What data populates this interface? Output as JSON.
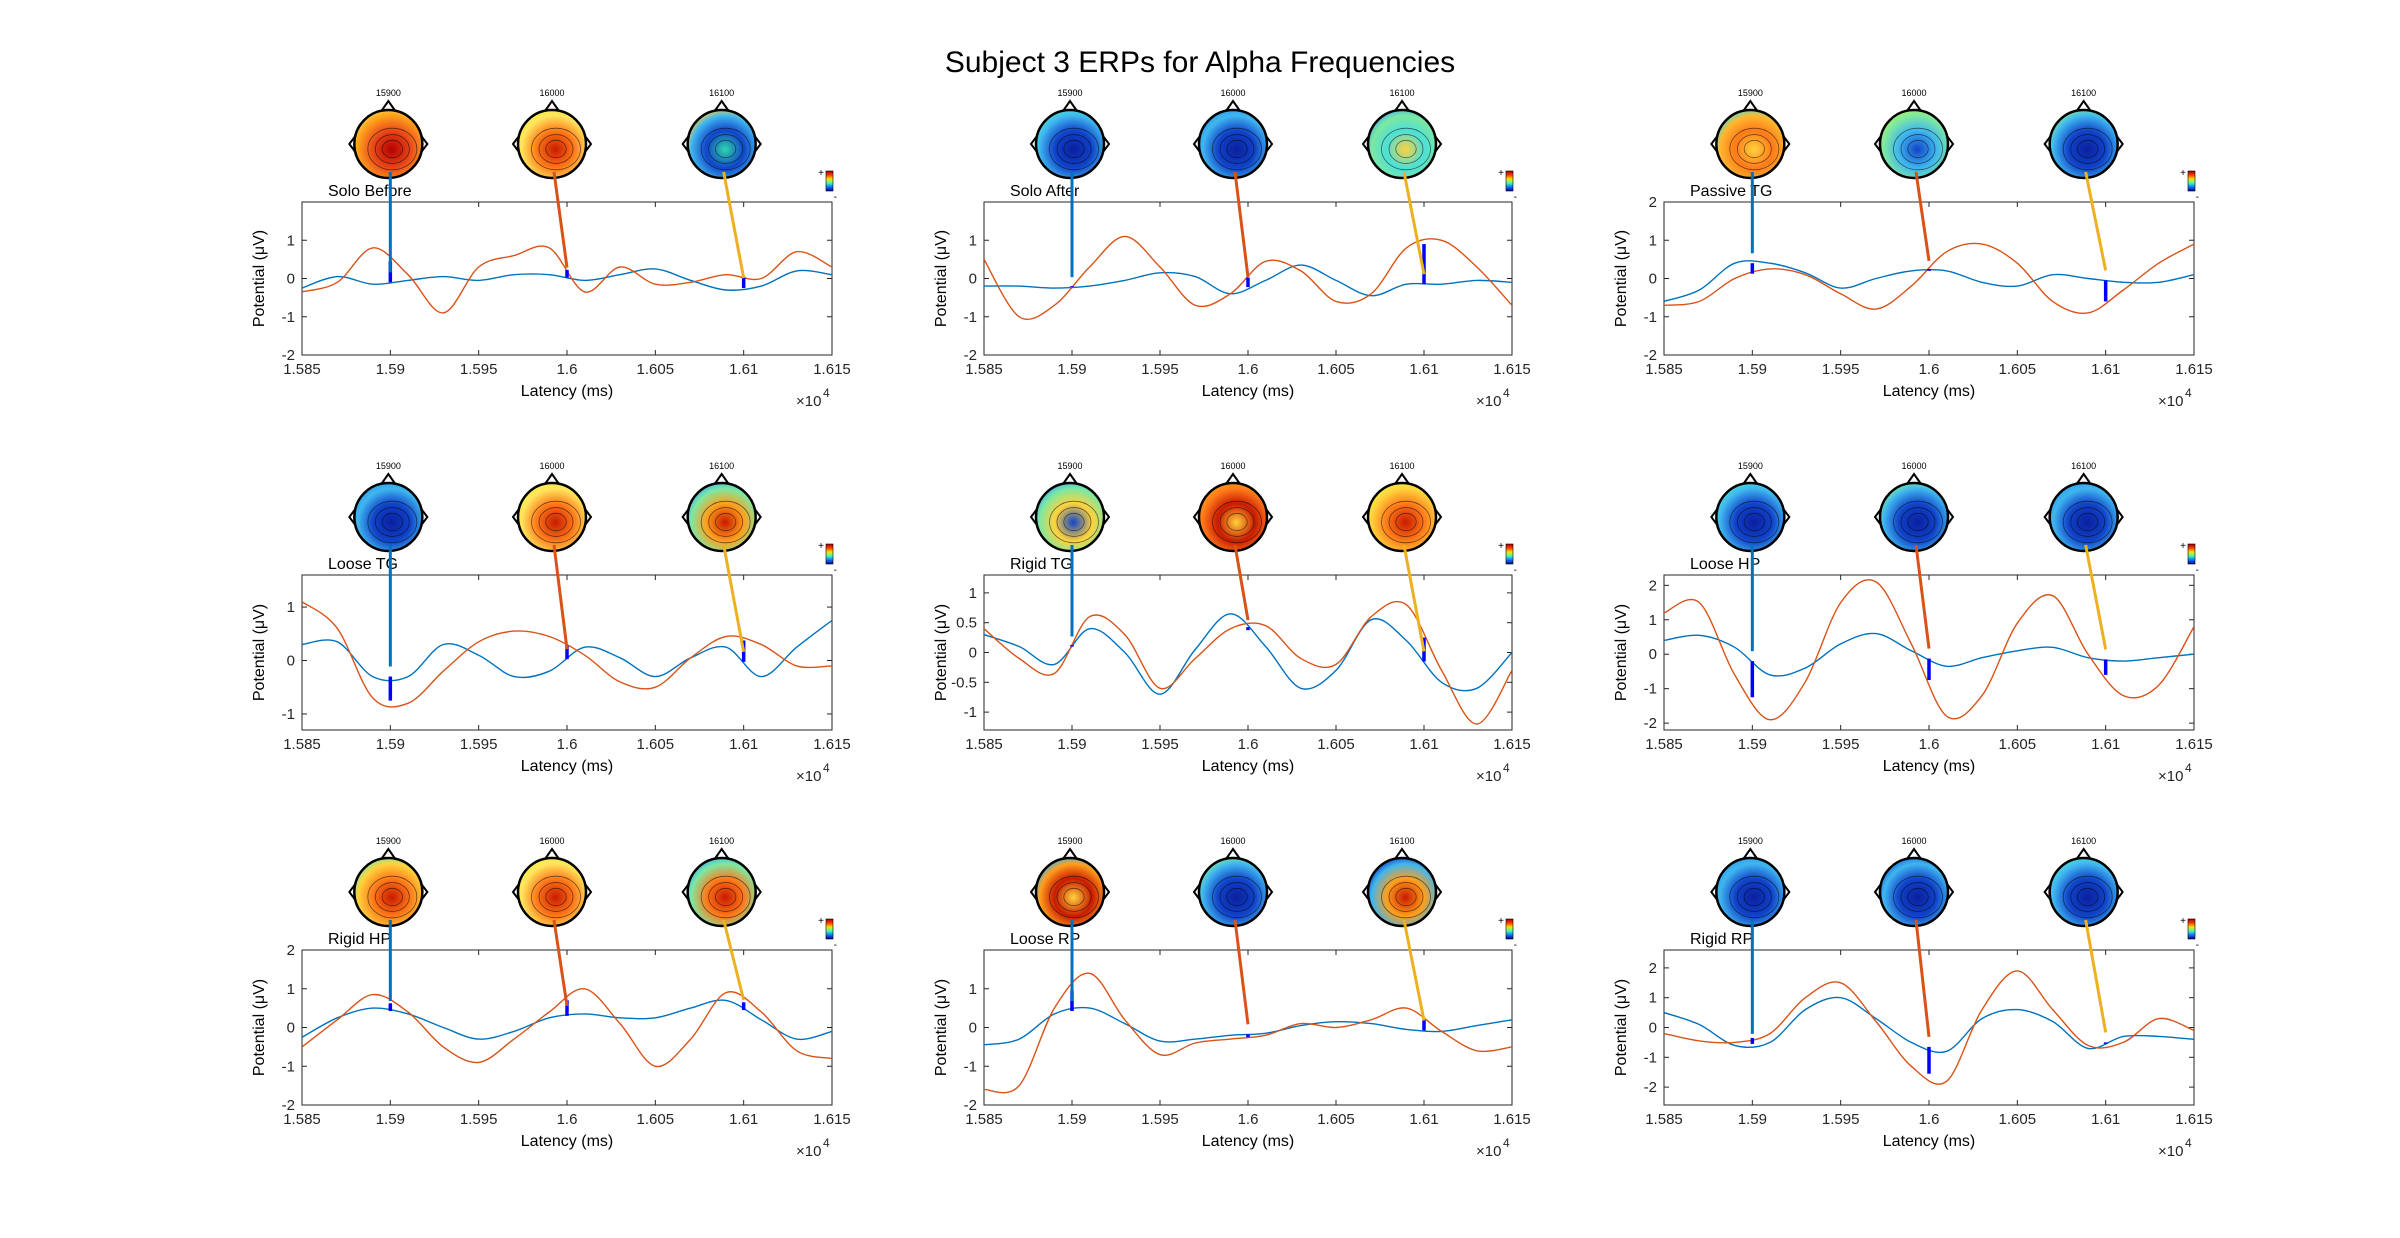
{
  "figure": {
    "title": "Subject 3 ERPs for Alpha Frequencies"
  },
  "shared": {
    "xlabel": "Latency (ms)",
    "ylabel": "Potential (μV)",
    "x_multiplier": "×10",
    "x_multiplier_exp": "4",
    "x_tick_labels": [
      "1.585",
      "1.59",
      "1.595",
      "1.6",
      "1.605",
      "1.61",
      "1.615"
    ],
    "xlim": [
      15850,
      16150
    ],
    "marker_latencies": [
      15900,
      16000,
      16100
    ],
    "topo_labels": [
      "15900",
      "16000",
      "16100"
    ],
    "colorbar_plus": "+",
    "colorbar_minus": "-",
    "colors": {
      "series_1": "#0072BD",
      "series_2": "#D95319",
      "marker": "#0000FF",
      "connector_1": "#0072BD",
      "connector_2": "#D95319",
      "connector_3": "#EDB120"
    }
  },
  "chart_data": [
    {
      "type": "line",
      "title": "Solo Before",
      "ylim": [
        -2,
        2
      ],
      "yticks": [
        -2,
        -1,
        0,
        1
      ],
      "x": [
        15850,
        15870,
        15890,
        15910,
        15930,
        15950,
        15970,
        15990,
        16010,
        16030,
        16050,
        16070,
        16090,
        16110,
        16130,
        16150
      ],
      "series": [
        {
          "values": [
            -0.25,
            0.05,
            -0.15,
            -0.05,
            0.05,
            -0.05,
            0.1,
            0.1,
            -0.05,
            0.1,
            0.25,
            -0.05,
            -0.3,
            -0.2,
            0.2,
            0.1
          ]
        },
        {
          "values": [
            -0.35,
            -0.1,
            0.8,
            0.1,
            -0.9,
            0.3,
            0.6,
            0.8,
            -0.35,
            0.3,
            -0.15,
            -0.1,
            0.1,
            0.0,
            0.7,
            0.3
          ]
        }
      ],
      "topomaps": [
        {
          "colors": [
            "#ff9f1c",
            "#e8481a",
            "#b40000",
            "#ffd23c"
          ]
        },
        {
          "colors": [
            "#ffe45c",
            "#ff7a1a",
            "#c81a00",
            "#f7f04a"
          ]
        },
        {
          "colors": [
            "#3fb6ef",
            "#1144c9",
            "#2ed6a8",
            "#ffd23c"
          ]
        }
      ]
    },
    {
      "type": "line",
      "title": "Solo After",
      "ylim": [
        -2,
        2
      ],
      "yticks": [
        -2,
        -1,
        0,
        1
      ],
      "x": [
        15850,
        15870,
        15890,
        15910,
        15930,
        15950,
        15970,
        15990,
        16010,
        16030,
        16050,
        16070,
        16090,
        16110,
        16130,
        16150
      ],
      "series": [
        {
          "values": [
            -0.2,
            -0.2,
            -0.25,
            -0.2,
            -0.05,
            0.15,
            0.05,
            -0.4,
            -0.05,
            0.35,
            -0.05,
            -0.45,
            -0.15,
            -0.15,
            -0.05,
            -0.1
          ]
        },
        {
          "values": [
            0.5,
            -1.0,
            -0.7,
            0.3,
            1.1,
            0.3,
            -0.7,
            -0.4,
            0.45,
            0.2,
            -0.6,
            -0.4,
            0.8,
            1.0,
            0.3,
            -0.7
          ]
        }
      ],
      "topomaps": [
        {
          "colors": [
            "#3fb6ef",
            "#1144c9",
            "#0a1f9e",
            "#4be0d8"
          ]
        },
        {
          "colors": [
            "#3fb6ef",
            "#1144c9",
            "#0a1f9e",
            "#2fa0ee"
          ]
        },
        {
          "colors": [
            "#7ee8a0",
            "#4be0d8",
            "#ffd23c",
            "#3fb6ef"
          ]
        }
      ]
    },
    {
      "type": "line",
      "title": "Passive TG",
      "ylim": [
        -2,
        2
      ],
      "yticks": [
        -2,
        -1,
        0,
        1,
        2
      ],
      "x": [
        15850,
        15870,
        15890,
        15910,
        15930,
        15950,
        15970,
        15990,
        16010,
        16030,
        16050,
        16070,
        16090,
        16110,
        16130,
        16150
      ],
      "series": [
        {
          "values": [
            -0.6,
            -0.3,
            0.4,
            0.4,
            0.15,
            -0.25,
            0.0,
            0.2,
            0.2,
            -0.1,
            -0.2,
            0.1,
            0.0,
            -0.1,
            -0.1,
            0.1
          ]
        },
        {
          "values": [
            -0.7,
            -0.6,
            0.0,
            0.25,
            0.1,
            -0.4,
            -0.8,
            -0.2,
            0.7,
            0.9,
            0.4,
            -0.6,
            -0.9,
            -0.3,
            0.4,
            0.9
          ]
        }
      ],
      "topomaps": [
        {
          "colors": [
            "#ffb82e",
            "#ff7a1a",
            "#ffd23c",
            "#4be0d8"
          ]
        },
        {
          "colors": [
            "#7ee8a0",
            "#3fb6ef",
            "#1144c9",
            "#a8f06a"
          ]
        },
        {
          "colors": [
            "#3fb6ef",
            "#1144c9",
            "#0a1f9e",
            "#7ee8a0"
          ]
        }
      ]
    },
    {
      "type": "line",
      "title": "Loose TG",
      "ylim": [
        -1.3,
        1.6
      ],
      "yticks": [
        -1,
        0,
        1
      ],
      "x": [
        15850,
        15870,
        15890,
        15910,
        15930,
        15950,
        15970,
        15990,
        16010,
        16030,
        16050,
        16070,
        16090,
        16110,
        16130,
        16150
      ],
      "series": [
        {
          "values": [
            0.3,
            0.35,
            -0.3,
            -0.3,
            0.3,
            0.1,
            -0.3,
            -0.2,
            0.25,
            0.05,
            -0.3,
            0.05,
            0.25,
            -0.3,
            0.25,
            0.75
          ]
        },
        {
          "values": [
            1.1,
            0.6,
            -0.7,
            -0.8,
            -0.2,
            0.35,
            0.55,
            0.45,
            0.1,
            -0.4,
            -0.5,
            0.05,
            0.45,
            0.3,
            -0.1,
            -0.1
          ]
        }
      ],
      "topomaps": [
        {
          "colors": [
            "#3fb6ef",
            "#1144c9",
            "#0a1f9e",
            "#2fa0ee"
          ]
        },
        {
          "colors": [
            "#ffe45c",
            "#ff7a1a",
            "#c81a00",
            "#f7f04a"
          ]
        },
        {
          "colors": [
            "#7ee8a0",
            "#ff9f1c",
            "#c81a00",
            "#3fb6ef"
          ]
        }
      ]
    },
    {
      "type": "line",
      "title": "Rigid TG",
      "ylim": [
        -1.3,
        1.3
      ],
      "yticks": [
        -1,
        -0.5,
        0,
        0.5,
        1
      ],
      "x": [
        15850,
        15870,
        15890,
        15910,
        15930,
        15950,
        15970,
        15990,
        16010,
        16030,
        16050,
        16070,
        16090,
        16110,
        16130,
        16150
      ],
      "series": [
        {
          "values": [
            0.3,
            0.1,
            -0.2,
            0.4,
            0.0,
            -0.7,
            0.05,
            0.65,
            0.1,
            -0.6,
            -0.3,
            0.55,
            0.2,
            -0.5,
            -0.6,
            0.0
          ]
        },
        {
          "values": [
            0.4,
            -0.1,
            -0.35,
            0.6,
            0.3,
            -0.6,
            -0.1,
            0.4,
            0.45,
            -0.1,
            -0.2,
            0.6,
            0.8,
            -0.3,
            -1.2,
            -0.3
          ]
        }
      ],
      "topomaps": [
        {
          "colors": [
            "#7ee8a0",
            "#ffd23c",
            "#1144c9",
            "#3fb6ef"
          ]
        },
        {
          "colors": [
            "#ff7a1a",
            "#c81a00",
            "#ffd23c",
            "#ff9f1c"
          ]
        },
        {
          "colors": [
            "#ffd23c",
            "#ff7a1a",
            "#c81a00",
            "#f7f04a"
          ]
        }
      ]
    },
    {
      "type": "line",
      "title": "Loose HP",
      "ylim": [
        -2.2,
        2.3
      ],
      "yticks": [
        -2,
        -1,
        0,
        1,
        2
      ],
      "x": [
        15850,
        15870,
        15890,
        15910,
        15930,
        15950,
        15970,
        15990,
        16010,
        16030,
        16050,
        16070,
        16090,
        16110,
        16130,
        16150
      ],
      "series": [
        {
          "values": [
            0.4,
            0.55,
            0.2,
            -0.6,
            -0.4,
            0.3,
            0.6,
            0.1,
            -0.35,
            -0.1,
            0.1,
            0.2,
            -0.1,
            -0.2,
            -0.1,
            0.0
          ]
        },
        {
          "values": [
            1.2,
            1.5,
            -0.6,
            -1.9,
            -0.8,
            1.5,
            2.1,
            0.3,
            -1.8,
            -1.2,
            0.9,
            1.7,
            0.0,
            -1.2,
            -0.9,
            0.8
          ]
        }
      ],
      "topomaps": [
        {
          "colors": [
            "#3fb6ef",
            "#1144c9",
            "#0a1f9e",
            "#4be0d8"
          ]
        },
        {
          "colors": [
            "#3fb6ef",
            "#1144c9",
            "#0a1f9e",
            "#7ee8a0"
          ]
        },
        {
          "colors": [
            "#3fb6ef",
            "#1144c9",
            "#0a1f9e",
            "#2fa0ee"
          ]
        }
      ]
    },
    {
      "type": "line",
      "title": "Rigid HP",
      "ylim": [
        -2,
        2
      ],
      "yticks": [
        -2,
        -1,
        0,
        1,
        2
      ],
      "x": [
        15850,
        15870,
        15890,
        15910,
        15930,
        15950,
        15970,
        15990,
        16010,
        16030,
        16050,
        16070,
        16090,
        16110,
        16130,
        16150
      ],
      "series": [
        {
          "values": [
            -0.25,
            0.25,
            0.5,
            0.35,
            0.0,
            -0.3,
            -0.1,
            0.25,
            0.35,
            0.25,
            0.25,
            0.5,
            0.7,
            0.2,
            -0.3,
            -0.1
          ]
        },
        {
          "values": [
            -0.5,
            0.2,
            0.85,
            0.4,
            -0.5,
            -0.9,
            -0.3,
            0.4,
            1.0,
            0.1,
            -1.0,
            -0.3,
            0.9,
            0.4,
            -0.6,
            -0.8
          ]
        }
      ],
      "topomaps": [
        {
          "colors": [
            "#ffd23c",
            "#ff7a1a",
            "#c81a00",
            "#7ee8a0"
          ]
        },
        {
          "colors": [
            "#ffe45c",
            "#ff7a1a",
            "#c81a00",
            "#f7f04a"
          ]
        },
        {
          "colors": [
            "#7ee8a0",
            "#ff7a1a",
            "#c81a00",
            "#3fb6ef"
          ]
        }
      ]
    },
    {
      "type": "line",
      "title": "Loose RP",
      "ylim": [
        -2,
        2
      ],
      "yticks": [
        -2,
        -1,
        0,
        1
      ],
      "x": [
        15850,
        15870,
        15890,
        15910,
        15930,
        15950,
        15970,
        15990,
        16010,
        16030,
        16050,
        16070,
        16090,
        16110,
        16130,
        16150
      ],
      "series": [
        {
          "values": [
            -0.45,
            -0.3,
            0.35,
            0.5,
            0.1,
            -0.35,
            -0.3,
            -0.2,
            -0.15,
            0.05,
            0.15,
            0.1,
            -0.05,
            -0.1,
            0.05,
            0.2
          ]
        },
        {
          "values": [
            -1.6,
            -1.5,
            0.5,
            1.4,
            0.2,
            -0.7,
            -0.4,
            -0.3,
            -0.2,
            0.1,
            0.0,
            0.2,
            0.5,
            -0.1,
            -0.6,
            -0.5
          ]
        }
      ],
      "topomaps": [
        {
          "colors": [
            "#ff9f1c",
            "#c81a00",
            "#ffd23c",
            "#3fb6ef"
          ]
        },
        {
          "colors": [
            "#3fb6ef",
            "#1144c9",
            "#0a1f9e",
            "#7ee8a0"
          ]
        },
        {
          "colors": [
            "#3fb6ef",
            "#ff9f1c",
            "#c81a00",
            "#1144c9"
          ]
        }
      ]
    },
    {
      "type": "line",
      "title": "Rigid RP",
      "ylim": [
        -2.6,
        2.6
      ],
      "yticks": [
        -2,
        -1,
        0,
        1,
        2
      ],
      "x": [
        15850,
        15870,
        15890,
        15910,
        15930,
        15950,
        15970,
        15990,
        16010,
        16030,
        16050,
        16070,
        16090,
        16110,
        16130,
        16150
      ],
      "series": [
        {
          "values": [
            0.5,
            0.1,
            -0.6,
            -0.5,
            0.6,
            1.0,
            0.3,
            -0.5,
            -0.8,
            0.3,
            0.6,
            0.2,
            -0.7,
            -0.3,
            -0.3,
            -0.4
          ]
        },
        {
          "values": [
            -0.2,
            -0.45,
            -0.5,
            -0.2,
            1.0,
            1.5,
            0.2,
            -1.3,
            -1.8,
            0.6,
            1.9,
            0.6,
            -0.6,
            -0.5,
            0.3,
            -0.1
          ]
        }
      ],
      "topomaps": [
        {
          "colors": [
            "#3fb6ef",
            "#1144c9",
            "#0a1f9e",
            "#2fa0ee"
          ]
        },
        {
          "colors": [
            "#3fb6ef",
            "#1144c9",
            "#0a1f9e",
            "#1e6ee0"
          ]
        },
        {
          "colors": [
            "#3fb6ef",
            "#1144c9",
            "#0a1f9e",
            "#4be0d8"
          ]
        }
      ]
    }
  ]
}
